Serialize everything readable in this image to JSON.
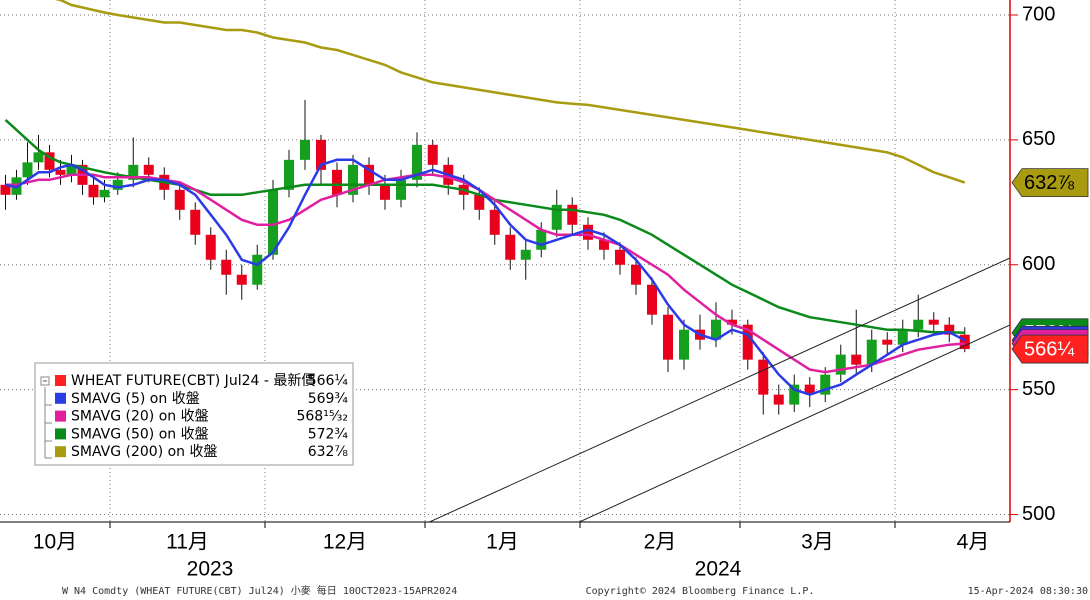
{
  "chart_data": {
    "type": "candlestick",
    "months": [
      "10月",
      "11月",
      "12月",
      "1月",
      "2月",
      "3月",
      "4月"
    ],
    "years": [
      "2023",
      "2024"
    ],
    "ylim": [
      497,
      706
    ],
    "yticks": [
      500,
      550,
      600,
      650,
      700
    ],
    "grid": true,
    "price": {
      "name": "WHEAT FUTURE(CBT) Jul24 - 最新價",
      "color": "#ff2020",
      "up_color": "#14a01e",
      "down_color": "#e8001c",
      "candles": [
        [
          [
            632,
            636,
            622,
            628
          ],
          [
            628,
            638,
            626,
            635
          ],
          [
            635,
            649,
            632,
            641
          ],
          [
            641,
            652,
            638,
            645
          ],
          [
            645,
            648,
            635,
            638
          ],
          [
            638,
            642,
            632,
            636
          ],
          [
            636,
            644,
            633,
            640
          ],
          [
            640,
            642,
            628,
            632
          ],
          [
            632,
            635,
            624,
            627
          ],
          [
            627,
            634,
            625,
            630
          ]
        ],
        [
          [
            630,
            637,
            628,
            634
          ],
          [
            634,
            651,
            631,
            640
          ],
          [
            640,
            643,
            633,
            636
          ],
          [
            636,
            639,
            626,
            630
          ],
          [
            630,
            633,
            618,
            622
          ],
          [
            622,
            625,
            608,
            612
          ],
          [
            612,
            615,
            598,
            602
          ],
          [
            602,
            606,
            588,
            596
          ],
          [
            596,
            600,
            586,
            592
          ],
          [
            592,
            608,
            590,
            604
          ]
        ],
        [
          [
            604,
            634,
            602,
            630
          ],
          [
            630,
            646,
            627,
            642
          ],
          [
            642,
            666,
            638,
            650
          ],
          [
            650,
            652,
            632,
            638
          ],
          [
            638,
            641,
            623,
            628
          ],
          [
            628,
            644,
            625,
            640
          ],
          [
            640,
            643,
            628,
            632
          ],
          [
            632,
            636,
            622,
            626
          ],
          [
            626,
            638,
            623,
            634
          ],
          [
            634,
            653,
            631,
            648
          ]
        ],
        [
          [
            648,
            650,
            636,
            640
          ],
          [
            640,
            643,
            628,
            632
          ],
          [
            632,
            636,
            622,
            628
          ],
          [
            628,
            631,
            618,
            622
          ],
          [
            622,
            626,
            608,
            612
          ],
          [
            612,
            615,
            598,
            602
          ],
          [
            602,
            610,
            594,
            606
          ],
          [
            606,
            617,
            603,
            614
          ],
          [
            614,
            630,
            611,
            624
          ],
          [
            624,
            627,
            612,
            616
          ]
        ],
        [
          [
            616,
            619,
            606,
            610
          ],
          [
            610,
            613,
            602,
            606
          ],
          [
            606,
            609,
            596,
            600
          ],
          [
            600,
            603,
            588,
            592
          ],
          [
            592,
            595,
            576,
            580
          ],
          [
            580,
            583,
            557,
            562
          ],
          [
            562,
            578,
            558,
            574
          ],
          [
            574,
            580,
            566,
            570
          ],
          [
            570,
            585,
            567,
            578
          ],
          [
            578,
            582,
            572,
            576
          ]
        ],
        [
          [
            576,
            578,
            558,
            562
          ],
          [
            562,
            565,
            540,
            548
          ],
          [
            548,
            552,
            540,
            544
          ],
          [
            544,
            556,
            541,
            552
          ],
          [
            552,
            555,
            543,
            548
          ],
          [
            548,
            559,
            545,
            556
          ],
          [
            556,
            568,
            553,
            564
          ],
          [
            564,
            582,
            556,
            560
          ],
          [
            560,
            574,
            557,
            570
          ],
          [
            570,
            573,
            564,
            568
          ]
        ],
        [
          [
            568,
            578,
            565,
            574
          ],
          [
            574,
            588,
            571,
            578
          ],
          [
            578,
            581,
            573,
            576
          ],
          [
            576,
            579,
            569,
            572
          ],
          [
            572,
            575,
            565,
            566.25
          ]
        ]
      ],
      "last_label": "566¼"
    },
    "series": [
      {
        "name": "SMAVG (5)  on 收盤",
        "color": "#2b3be6",
        "values": [
          [
            632,
            631,
            634,
            637,
            637,
            639,
            640,
            638,
            635,
            632
          ],
          [
            631,
            632,
            634,
            634,
            632,
            628,
            620,
            612,
            602,
            600
          ],
          [
            605,
            615,
            628,
            640,
            642,
            642,
            638,
            634,
            634,
            636
          ],
          [
            638,
            636,
            634,
            630,
            624,
            616,
            610,
            608,
            610,
            612
          ],
          [
            614,
            612,
            608,
            602,
            594,
            584,
            576,
            572,
            570,
            574
          ],
          [
            572,
            564,
            556,
            550,
            548,
            550,
            552,
            556,
            560,
            564
          ],
          [
            568,
            570,
            572,
            573,
            569.75
          ]
        ],
        "last_label": "569¾"
      },
      {
        "name": "SMAVG (20)  on 收盤",
        "color": "#e020a0",
        "values": [
          [
            632,
            632,
            633,
            634,
            634,
            635,
            636,
            636,
            636,
            635
          ],
          [
            635,
            635,
            635,
            634,
            633,
            630,
            626,
            622,
            618,
            616
          ],
          [
            616,
            618,
            622,
            626,
            628,
            630,
            632,
            634,
            635,
            636
          ],
          [
            636,
            635,
            633,
            630,
            626,
            622,
            618,
            614,
            612,
            612
          ],
          [
            612,
            610,
            608,
            604,
            600,
            596,
            590,
            585,
            580,
            576
          ],
          [
            574,
            570,
            566,
            562,
            558,
            557,
            558,
            559,
            560,
            562
          ],
          [
            564,
            566,
            567,
            568,
            568.46875
          ]
        ],
        "last_label": "568¹⁵⁄₃₂"
      },
      {
        "name": "SMAVG (50)  on 收盤",
        "color": "#0a8a1a",
        "values": [
          [
            658,
            654,
            650,
            646,
            643,
            641,
            640,
            639,
            638,
            637
          ],
          [
            636,
            635,
            634,
            633,
            632,
            630,
            628,
            628,
            628,
            629
          ],
          [
            630,
            631,
            632,
            632,
            632,
            632,
            632,
            632,
            632,
            632
          ],
          [
            632,
            631,
            630,
            628,
            626,
            625,
            624,
            623,
            622,
            622
          ],
          [
            621,
            620,
            618,
            615,
            612,
            608,
            604,
            600,
            596,
            592
          ],
          [
            589,
            586,
            583,
            581,
            579,
            578,
            577,
            576,
            575,
            574
          ],
          [
            574,
            573.5,
            573,
            573,
            572.75
          ]
        ],
        "last_label": "572¾"
      },
      {
        "name": "SMAVG (200)  on 收盤",
        "color": "#a89b10",
        "values": [
          [
            712,
            711,
            710,
            708,
            707,
            706,
            704,
            703,
            702,
            701
          ],
          [
            700,
            699,
            698,
            697,
            697,
            696,
            695,
            694,
            694,
            693
          ],
          [
            691,
            690,
            689,
            687,
            686,
            684,
            682,
            680,
            677,
            675
          ],
          [
            673,
            672,
            671,
            670,
            669,
            668,
            667,
            666,
            665,
            664.5
          ],
          [
            664,
            663,
            662,
            661,
            660,
            659,
            658,
            657,
            656,
            655
          ],
          [
            654,
            653,
            652,
            651,
            650,
            649,
            648,
            647,
            646,
            645
          ],
          [
            643,
            640,
            637,
            635,
            632.875
          ]
        ],
        "last_label": "632⅞"
      }
    ],
    "footer": {
      "left": "W N4 Comdty (WHEAT FUTURE(CBT) Jul24) 小麥  每日 10OCT2023-15APR2024",
      "center": "Copyright© 2024 Bloomberg Finance L.P.",
      "right": "15-Apr-2024 08:30:30"
    }
  }
}
